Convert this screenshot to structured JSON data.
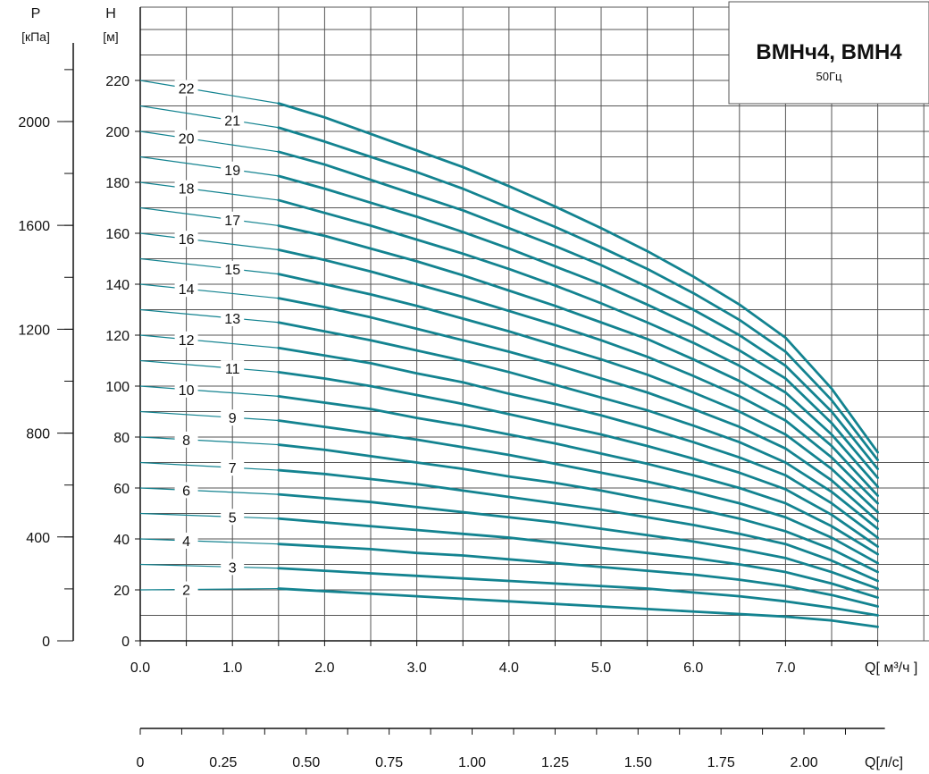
{
  "title": {
    "main": "ВМНч4, ВМН4",
    "sub": "50Гц"
  },
  "axes": {
    "p_label": "P",
    "p_unit": "[кПа]",
    "h_label": "H",
    "h_unit": "[м]",
    "q_m3h_label": "Q[ м³/ч ]",
    "q_ls_label": "Q[л/с]"
  },
  "colors": {
    "curve": "#138390",
    "grid": "#555555",
    "axis": "#111111"
  },
  "chart_data": {
    "type": "line",
    "title": "ВМНч4, ВМН4",
    "subtitle": "50Гц",
    "xlabel": "Q[ м³/ч ]",
    "ylabel": "H [м]",
    "secondary_xlabel": "Q[л/с]",
    "secondary_ylabel": "P [кПа]",
    "xlim": [
      0,
      8.5
    ],
    "ylim": [
      0,
      250
    ],
    "x_ticks": [
      "0.0",
      "1.0",
      "2.0",
      "3.0",
      "4.0",
      "5.0",
      "6.0",
      "7.0"
    ],
    "y_ticks": [
      "0",
      "20",
      "40",
      "60",
      "80",
      "100",
      "120",
      "140",
      "160",
      "180",
      "200",
      "220"
    ],
    "p_ticks": [
      "0",
      "400",
      "800",
      "1200",
      "1600",
      "2000"
    ],
    "q_ls_ticks": [
      "0",
      "0.25",
      "0.50",
      "0.75",
      "1.00",
      "1.25",
      "1.50",
      "1.75",
      "2.00"
    ],
    "grid": true,
    "x": [
      0,
      1.5,
      2,
      2.5,
      3,
      3.5,
      4,
      4.5,
      5,
      5.5,
      6,
      6.5,
      7,
      7.5,
      8
    ],
    "series": [
      {
        "name": "2",
        "values": [
          20,
          20.5,
          19.5,
          18.5,
          17.5,
          16.5,
          15.5,
          14.5,
          13.5,
          12.5,
          11.5,
          10.5,
          9.5,
          8,
          5.5
        ]
      },
      {
        "name": "3",
        "values": [
          30,
          28.5,
          27.5,
          26.5,
          25.5,
          24.5,
          23.5,
          22.5,
          21.5,
          20.5,
          19,
          17.5,
          15.5,
          13,
          10
        ]
      },
      {
        "name": "4",
        "values": [
          40,
          38,
          37,
          36,
          34.5,
          33.5,
          32,
          30.5,
          29,
          27.5,
          26,
          24,
          21.5,
          18,
          13.5
        ]
      },
      {
        "name": "5",
        "values": [
          50,
          48,
          46.5,
          45,
          43.5,
          42,
          40.5,
          38.5,
          36.5,
          34.5,
          32.5,
          30,
          27,
          22.5,
          17
        ]
      },
      {
        "name": "6",
        "values": [
          60,
          57.5,
          56,
          54.5,
          52.5,
          50.5,
          48.5,
          46.5,
          44,
          41.5,
          39,
          36,
          32.5,
          27,
          20.5
        ]
      },
      {
        "name": "7",
        "values": [
          70,
          67,
          65.5,
          63.5,
          61.5,
          59,
          56.5,
          54,
          51.5,
          48.5,
          45.5,
          42,
          38,
          31.5,
          23.5
        ]
      },
      {
        "name": "8",
        "values": [
          80,
          77,
          75,
          72.5,
          70,
          67.5,
          64.5,
          62,
          59,
          55.5,
          52,
          48,
          43,
          36,
          27
        ]
      },
      {
        "name": "9",
        "values": [
          90,
          86.5,
          84,
          81.5,
          79,
          76,
          73,
          69.5,
          66,
          62.5,
          58.5,
          54,
          48.5,
          40.5,
          30.5
        ]
      },
      {
        "name": "10",
        "values": [
          100,
          96,
          93.5,
          91,
          87.5,
          84.5,
          81,
          77.5,
          73.5,
          69.5,
          65,
          60,
          54,
          45,
          34
        ]
      },
      {
        "name": "11",
        "values": [
          110,
          105.5,
          103,
          100,
          96.5,
          93,
          89,
          85,
          81,
          76.5,
          71.5,
          66,
          59.5,
          49.5,
          37
        ]
      },
      {
        "name": "12",
        "values": [
          120,
          115,
          112,
          109,
          105,
          101.5,
          97,
          93,
          88.5,
          83.5,
          78,
          72,
          65,
          54,
          40.5
        ]
      },
      {
        "name": "13",
        "values": [
          130,
          125,
          121.5,
          118,
          114,
          110,
          105.5,
          100.5,
          95.5,
          90.5,
          84.5,
          78,
          70,
          58.5,
          44
        ]
      },
      {
        "name": "14",
        "values": [
          140,
          134.5,
          131,
          127,
          122.5,
          118,
          113.5,
          108.5,
          103,
          97.5,
          91,
          84,
          75.5,
          63,
          47
        ]
      },
      {
        "name": "15",
        "values": [
          150,
          144,
          140,
          136,
          131.5,
          126.5,
          121.5,
          116,
          110.5,
          104.5,
          97.5,
          90,
          81,
          67.5,
          50.5
        ]
      },
      {
        "name": "16",
        "values": [
          160,
          153.5,
          149.5,
          145,
          140,
          135,
          129.5,
          124,
          118,
          111.5,
          104,
          96,
          86.5,
          72,
          54
        ]
      },
      {
        "name": "17",
        "values": [
          170,
          163,
          159,
          154,
          149,
          143.5,
          137.5,
          131.5,
          125,
          118.5,
          110.5,
          102,
          92,
          76.5,
          57
        ]
      },
      {
        "name": "18",
        "values": [
          180,
          173,
          168,
          163,
          157.5,
          152,
          146,
          139.5,
          132.5,
          125,
          117,
          108,
          97.5,
          81,
          60.5
        ]
      },
      {
        "name": "19",
        "values": [
          190,
          182.5,
          177.5,
          172,
          166.5,
          160.5,
          154,
          147,
          140,
          132,
          123.5,
          114,
          103,
          85.5,
          64
        ]
      },
      {
        "name": "20",
        "values": [
          200,
          192,
          187,
          181,
          175,
          169,
          162,
          155,
          147.5,
          139,
          130,
          120,
          108,
          90,
          67.5
        ]
      },
      {
        "name": "21",
        "values": [
          210,
          201.5,
          196,
          190,
          184,
          177.5,
          170,
          162.5,
          154.5,
          146,
          136.5,
          126,
          113.5,
          94.5,
          71
        ]
      },
      {
        "name": "22",
        "values": [
          220,
          211,
          205.5,
          199,
          192.5,
          186,
          178.5,
          170.5,
          162,
          153,
          143,
          132,
          119,
          99,
          74
        ]
      }
    ]
  }
}
